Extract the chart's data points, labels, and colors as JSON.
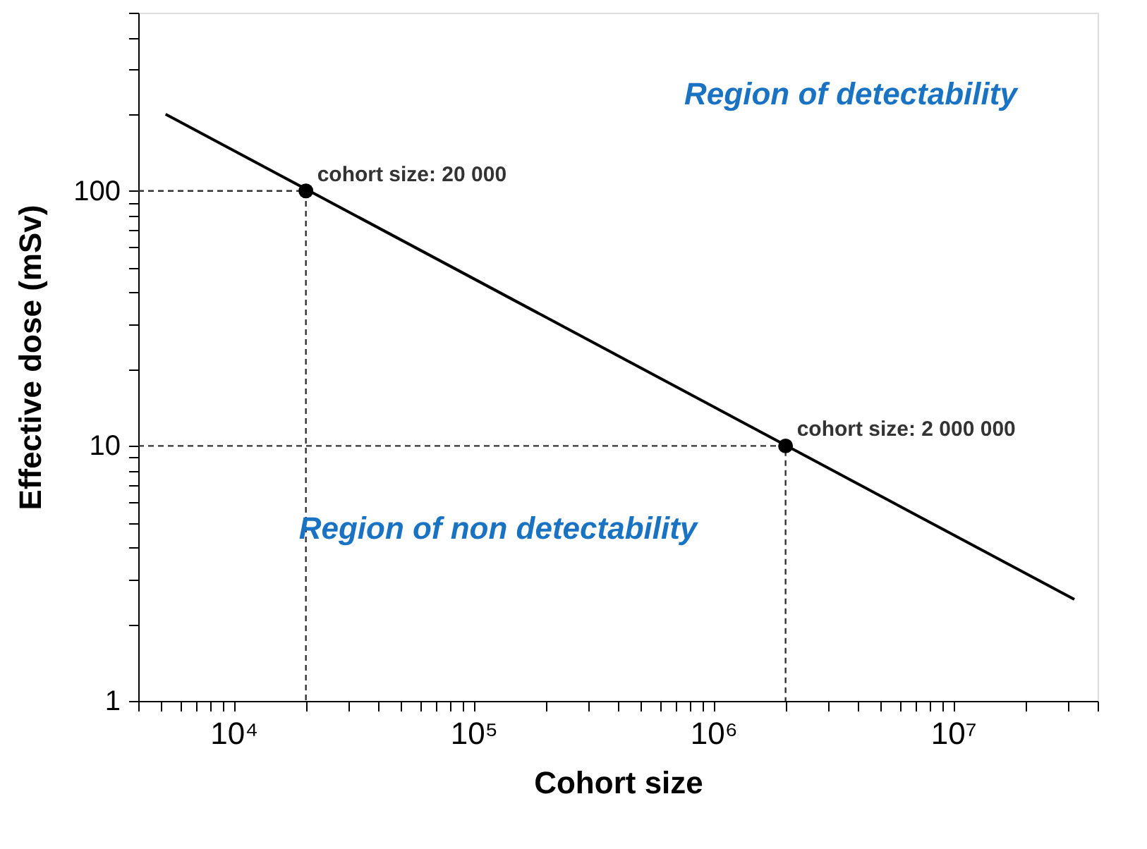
{
  "chart_data": {
    "type": "line",
    "xlabel": "Cohort size",
    "ylabel": "Effective dose (mSv)",
    "log": "xy",
    "grid": false,
    "xlim": [
      4000,
      40000000
    ],
    "ylim": [
      1,
      500
    ],
    "xticks": [
      {
        "value": 4000,
        "label": null
      },
      {
        "value": 5000,
        "label": null
      },
      {
        "value": 6000,
        "label": null
      },
      {
        "value": 7000,
        "label": null
      },
      {
        "value": 8000,
        "label": null
      },
      {
        "value": 9000,
        "label": null
      },
      {
        "value": 10000,
        "label": "10⁴"
      },
      {
        "value": 20000,
        "label": null
      },
      {
        "value": 30000,
        "label": null
      },
      {
        "value": 40000,
        "label": null
      },
      {
        "value": 50000,
        "label": null
      },
      {
        "value": 60000,
        "label": null
      },
      {
        "value": 70000,
        "label": null
      },
      {
        "value": 80000,
        "label": null
      },
      {
        "value": 90000,
        "label": null
      },
      {
        "value": 100000,
        "label": "10⁵"
      },
      {
        "value": 200000,
        "label": null
      },
      {
        "value": 300000,
        "label": null
      },
      {
        "value": 400000,
        "label": null
      },
      {
        "value": 500000,
        "label": null
      },
      {
        "value": 600000,
        "label": null
      },
      {
        "value": 700000,
        "label": null
      },
      {
        "value": 800000,
        "label": null
      },
      {
        "value": 900000,
        "label": null
      },
      {
        "value": 1000000,
        "label": "10⁶"
      },
      {
        "value": 2000000,
        "label": null
      },
      {
        "value": 3000000,
        "label": null
      },
      {
        "value": 4000000,
        "label": null
      },
      {
        "value": 5000000,
        "label": null
      },
      {
        "value": 6000000,
        "label": null
      },
      {
        "value": 7000000,
        "label": null
      },
      {
        "value": 8000000,
        "label": null
      },
      {
        "value": 9000000,
        "label": null
      },
      {
        "value": 10000000,
        "label": "10⁷"
      },
      {
        "value": 20000000,
        "label": null
      },
      {
        "value": 30000000,
        "label": null
      },
      {
        "value": 40000000,
        "label": null
      }
    ],
    "yticks": [
      1,
      {
        "value": 2,
        "label": null
      },
      {
        "value": 3,
        "label": null
      },
      {
        "value": 4,
        "label": null
      },
      {
        "value": 5,
        "label": null
      },
      {
        "value": 6,
        "label": null
      },
      {
        "value": 7,
        "label": null
      },
      {
        "value": 8,
        "label": null
      },
      {
        "value": 9,
        "label": null
      },
      10,
      {
        "value": 20,
        "label": null
      },
      {
        "value": 30,
        "label": null
      },
      {
        "value": 40,
        "label": null
      },
      {
        "value": 50,
        "label": null
      },
      {
        "value": 60,
        "label": null
      },
      {
        "value": 70,
        "label": null
      },
      {
        "value": 80,
        "label": null
      },
      {
        "value": 90,
        "label": null
      },
      100,
      {
        "value": 200,
        "label": null
      },
      {
        "value": 300,
        "label": null
      },
      {
        "value": 400,
        "label": null
      },
      {
        "value": 500,
        "label": null
      }
    ],
    "series": [
      {
        "color": "#000000",
        "line_style": "solid",
        "marker": "none",
        "x": [
          5200,
          32000000
        ],
        "values": [
          200,
          2.5
        ]
      },
      {
        "color": "#333333",
        "line_style": "dashed",
        "marker": "none",
        "x": [
          4000,
          20000,
          20000
        ],
        "values": [
          100,
          100,
          1
        ]
      },
      {
        "color": "#333333",
        "line_style": "dashed",
        "marker": "none",
        "x": [
          4000,
          2000000,
          2000000
        ],
        "values": [
          10,
          10,
          1
        ]
      },
      {
        "type": "scatter",
        "color": "#000000",
        "marker": "circle",
        "x": [
          20000,
          2000000
        ],
        "values": [
          100,
          10
        ]
      }
    ],
    "annotations": [
      {
        "text": "cohort size: 20 000",
        "x": 20000,
        "y": 100
      },
      {
        "text": "cohort size: 2 000 000",
        "x": 2000000,
        "y": 10
      },
      "Region of detectability",
      "Region of non detectability"
    ]
  }
}
